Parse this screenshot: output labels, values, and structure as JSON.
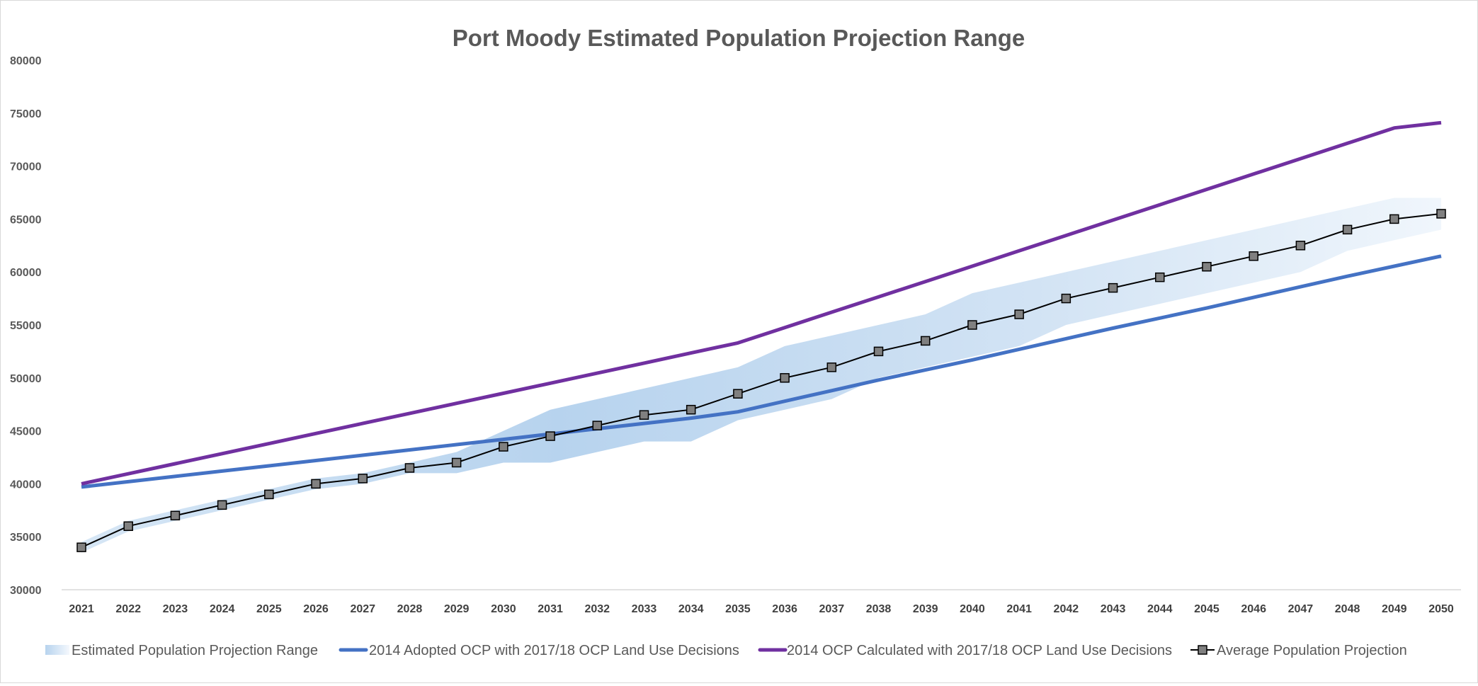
{
  "chart_data": {
    "type": "line",
    "title": "Port Moody Estimated Population Projection Range",
    "xlabel": "",
    "ylabel": "",
    "ylim": [
      30000,
      80000
    ],
    "yticks": [
      30000,
      35000,
      40000,
      45000,
      50000,
      55000,
      60000,
      65000,
      70000,
      75000,
      80000
    ],
    "grid": false,
    "legend_position": "bottom",
    "x": [
      2021,
      2022,
      2023,
      2024,
      2025,
      2026,
      2027,
      2028,
      2029,
      2030,
      2031,
      2032,
      2033,
      2034,
      2035,
      2036,
      2037,
      2038,
      2039,
      2040,
      2041,
      2042,
      2043,
      2044,
      2045,
      2046,
      2047,
      2048,
      2049,
      2050
    ],
    "range": {
      "name": "Estimated Population Projection Range",
      "color": "#bdd7ee",
      "upper": [
        34500,
        36500,
        37500,
        38500,
        39500,
        40500,
        41000,
        42000,
        43000,
        45000,
        47000,
        48000,
        49000,
        50000,
        51000,
        53000,
        54000,
        55000,
        56000,
        58000,
        59000,
        60000,
        61000,
        62000,
        63000,
        64000,
        65000,
        66000,
        67000,
        67000
      ],
      "lower": [
        33500,
        35500,
        36500,
        37500,
        38500,
        39500,
        40000,
        41000,
        41000,
        42000,
        42000,
        43000,
        44000,
        44000,
        46000,
        47000,
        48000,
        50000,
        51000,
        52000,
        53000,
        55000,
        56000,
        57000,
        58000,
        59000,
        60000,
        62000,
        63000,
        64000
      ]
    },
    "series": [
      {
        "name": "2014 Adopted OCP with 2017/18 OCP Land Use Decisions",
        "color": "#4472c4",
        "values": [
          39700,
          40200,
          40700,
          41200,
          41700,
          42200,
          42700,
          43200,
          43700,
          44200,
          44700,
          45200,
          45700,
          46200,
          46800,
          47800,
          48800,
          49800,
          50750,
          51700,
          52700,
          53700,
          54700,
          55650,
          56600,
          57600,
          58600,
          59600,
          60550,
          61500
        ]
      },
      {
        "name": "2014 OCP Calculated with 2017/18 OCP Land Use Decisions",
        "color": "#7030a0",
        "values": [
          40000,
          40950,
          41900,
          42850,
          43800,
          44750,
          45700,
          46650,
          47600,
          48550,
          49500,
          50450,
          51400,
          52350,
          53300,
          54750,
          56200,
          57650,
          59100,
          60550,
          62000,
          63450,
          64900,
          66350,
          67800,
          69250,
          70700,
          72150,
          73600,
          74100
        ]
      },
      {
        "name": "Average Population Projection",
        "color": "#000000",
        "marker_color": "#808080",
        "values": [
          34000,
          36000,
          37000,
          38000,
          39000,
          40000,
          40500,
          41500,
          42000,
          43500,
          44500,
          45500,
          46500,
          47000,
          48500,
          50000,
          51000,
          52500,
          53500,
          55000,
          56000,
          57500,
          58500,
          59500,
          60500,
          61500,
          62500,
          64000,
          65000,
          65500
        ]
      }
    ]
  }
}
